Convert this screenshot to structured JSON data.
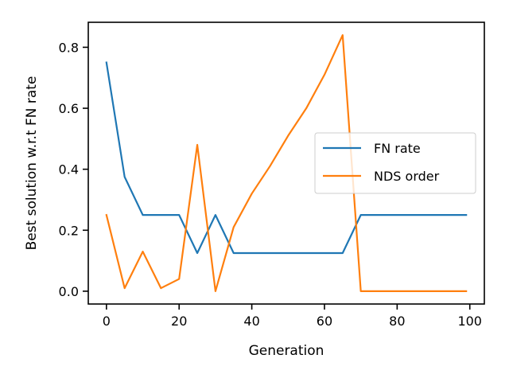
{
  "chart_data": {
    "type": "line",
    "xlabel": "Generation",
    "ylabel": "Best solution w.r.t FN rate",
    "xlim": [
      -5,
      104
    ],
    "ylim": [
      -0.042,
      0.882
    ],
    "xticks": [
      0,
      20,
      40,
      60,
      80,
      100
    ],
    "yticks": [
      0.0,
      0.2,
      0.4,
      0.6,
      0.8
    ],
    "xtick_labels": [
      "0",
      "20",
      "40",
      "60",
      "80",
      "100"
    ],
    "ytick_labels": [
      "0.0",
      "0.2",
      "0.4",
      "0.6",
      "0.8"
    ],
    "grid": false,
    "legend": "center-right",
    "series": [
      {
        "name": "FN rate",
        "color": "#1f77b4",
        "x": [
          0,
          5,
          10,
          15,
          20,
          25,
          30,
          35,
          40,
          45,
          50,
          55,
          60,
          65,
          70,
          75,
          80,
          85,
          90,
          95,
          99
        ],
        "y": [
          0.75,
          0.375,
          0.25,
          0.25,
          0.25,
          0.125,
          0.25,
          0.125,
          0.125,
          0.125,
          0.125,
          0.125,
          0.125,
          0.125,
          0.25,
          0.25,
          0.25,
          0.25,
          0.25,
          0.25,
          0.25
        ]
      },
      {
        "name": "NDS order",
        "color": "#ff7f0e",
        "x": [
          0,
          5,
          10,
          15,
          20,
          25,
          30,
          35,
          40,
          45,
          50,
          55,
          60,
          65,
          70,
          75,
          80,
          85,
          90,
          95,
          99
        ],
        "y": [
          0.25,
          0.01,
          0.13,
          0.01,
          0.04,
          0.48,
          0.0,
          0.21,
          0.32,
          0.41,
          0.51,
          0.6,
          0.71,
          0.84,
          0.0,
          0.0,
          0.0,
          0.0,
          0.0,
          0.0,
          0.0
        ]
      }
    ]
  }
}
